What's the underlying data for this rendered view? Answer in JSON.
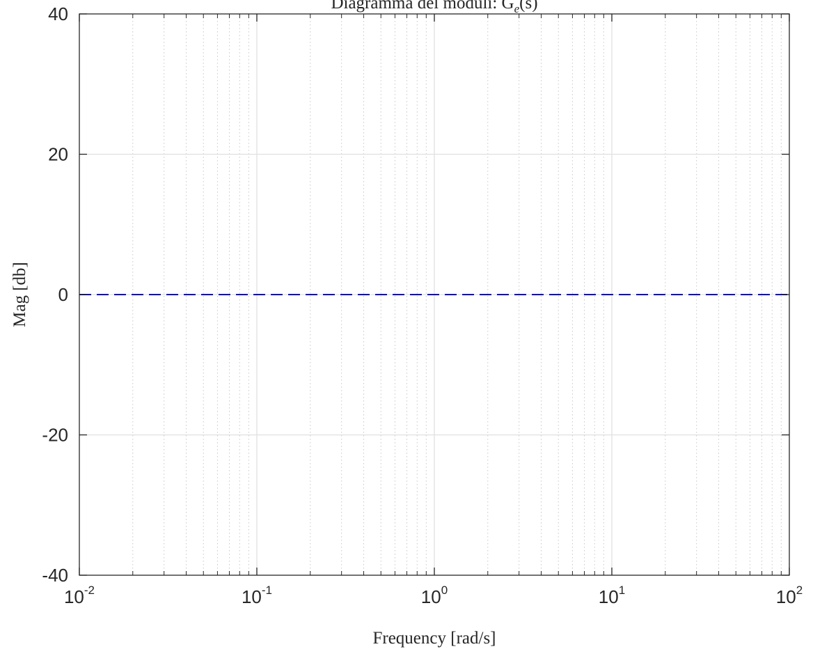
{
  "chart_data": {
    "type": "line",
    "title": "Diagramma del moduli: G",
    "title_subscript": "e",
    "title_suffix": "(s)",
    "xlabel": "Frequency [rad/s]",
    "ylabel": "Mag [db]",
    "xscale": "log",
    "xlim": [
      0.01,
      100
    ],
    "ylim": [
      -40,
      40
    ],
    "x_ticks": [
      {
        "base": "10",
        "exp": "-2"
      },
      {
        "base": "10",
        "exp": "-1"
      },
      {
        "base": "10",
        "exp": "0"
      },
      {
        "base": "10",
        "exp": "1"
      },
      {
        "base": "10",
        "exp": "2"
      }
    ],
    "y_ticks": [
      "-40",
      "-20",
      "0",
      "20",
      "40"
    ],
    "grid": true,
    "minor_grid": true,
    "series": [
      {
        "style": "dashed",
        "color": "#0000cc",
        "x": [
          0.01,
          100
        ],
        "y": [
          0,
          0
        ]
      }
    ]
  },
  "colors": {
    "axis": "#262626",
    "major_grid": "#e0e0e0",
    "minor_grid": "#c8c8c8",
    "line": "#0000cc"
  }
}
